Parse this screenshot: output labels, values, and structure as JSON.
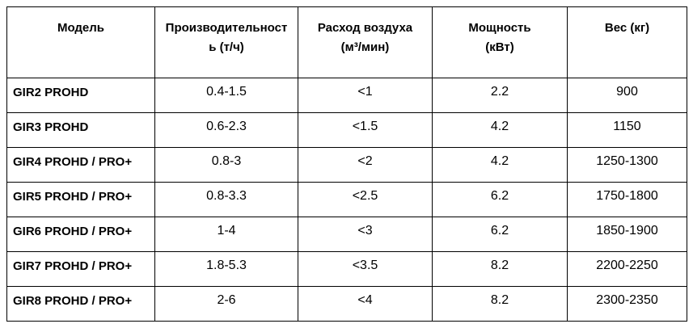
{
  "table": {
    "columns": [
      {
        "label": "Модель"
      },
      {
        "label": "Производительност\nь (т/ч)"
      },
      {
        "label": "Расход воздуха\n(м³/мин)"
      },
      {
        "label": "Мощность\n(кВт)"
      },
      {
        "label": "Вес (кг)"
      }
    ],
    "rows": [
      [
        "GIR2 PROHD",
        "0.4-1.5",
        "<1",
        "2.2",
        "900"
      ],
      [
        "GIR3 PROHD",
        "0.6-2.3",
        "<1.5",
        "4.2",
        "1150"
      ],
      [
        "GIR4 PROHD / PRO+",
        "0.8-3",
        "<2",
        "4.2",
        "1250-1300"
      ],
      [
        "GIR5 PROHD / PRO+",
        "0.8-3.3",
        "<2.5",
        "6.2",
        "1750-1800"
      ],
      [
        "GIR6 PROHD / PRO+",
        "1-4",
        "<3",
        "6.2",
        "1850-1900"
      ],
      [
        "GIR7 PROHD / PRO+",
        "1.8-5.3",
        "<3.5",
        "8.2",
        "2200-2250"
      ],
      [
        "GIR8 PROHD / PRO+",
        "2-6",
        "<4",
        "8.2",
        "2300-2350"
      ]
    ],
    "colors": {
      "border": "#000000",
      "text": "#000000",
      "background": "#ffffff"
    }
  }
}
